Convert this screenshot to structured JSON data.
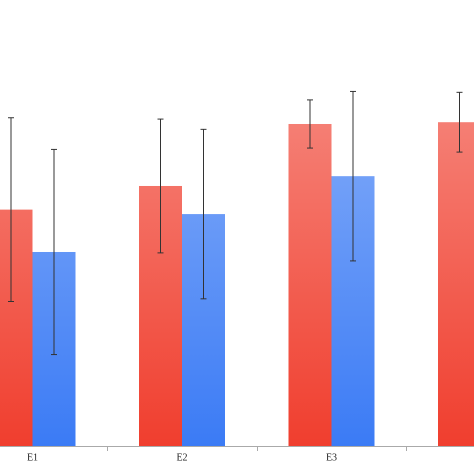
{
  "chart_data": {
    "type": "bar",
    "categories": [
      "E1",
      "E2",
      "E3",
      null
    ],
    "series": [
      {
        "color": "#f03e2e",
        "values": [
          53,
          58.3,
          72.2,
          72.6
        ],
        "errors": [
          20.6,
          15,
          5.4,
          6.7
        ]
      },
      {
        "color": "#3b7bf5",
        "values": [
          43.5,
          52,
          60.5,
          null
        ],
        "errors": [
          23,
          19,
          19,
          null
        ]
      }
    ],
    "ylim": [
      0,
      100
    ]
  }
}
